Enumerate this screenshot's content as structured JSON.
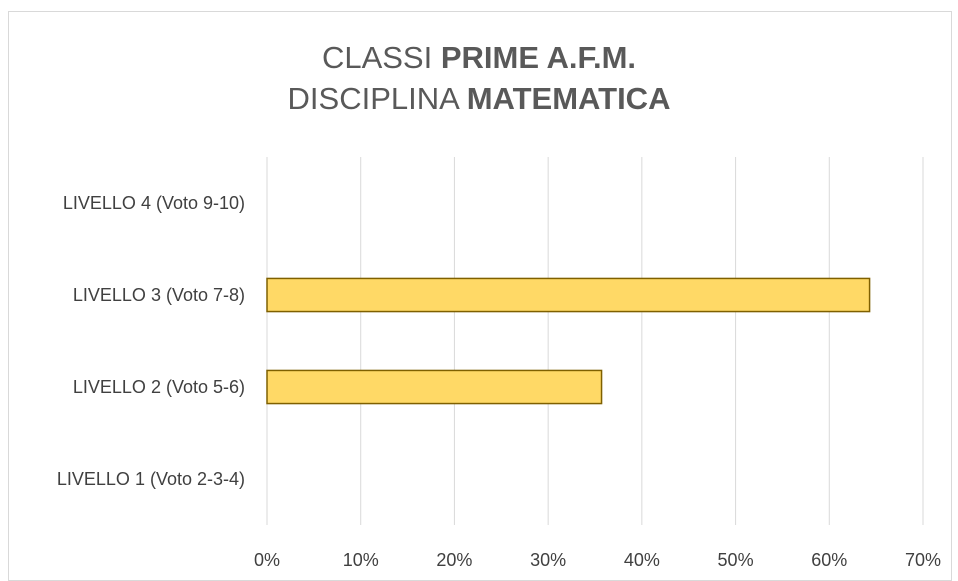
{
  "chart_data": {
    "type": "bar",
    "orientation": "horizontal",
    "title": {
      "line1_prefix": "CLASSI ",
      "line1_bold": "PRIME A.F.M.",
      "line2_prefix": "DISCIPLINA ",
      "line2_bold": "MATEMATICA"
    },
    "categories": [
      "LIVELLO 4 (Voto 9-10)",
      "LIVELLO 3 (Voto 7-8)",
      "LIVELLO 2 (Voto 5-6)",
      "LIVELLO 1 (Voto 2-3-4)"
    ],
    "values": [
      0,
      0.643,
      0.357,
      0
    ],
    "xlim": [
      0,
      0.7
    ],
    "x_ticks": [
      0,
      0.1,
      0.2,
      0.3,
      0.4,
      0.5,
      0.6,
      0.7
    ],
    "x_tick_labels": [
      "0%",
      "10%",
      "20%",
      "30%",
      "40%",
      "50%",
      "60%",
      "70%"
    ],
    "grid": true,
    "legend": "none",
    "bar_color": "#ffd966",
    "bar_edge_color": "#7f6000",
    "grid_color": "#d9d9d9"
  }
}
